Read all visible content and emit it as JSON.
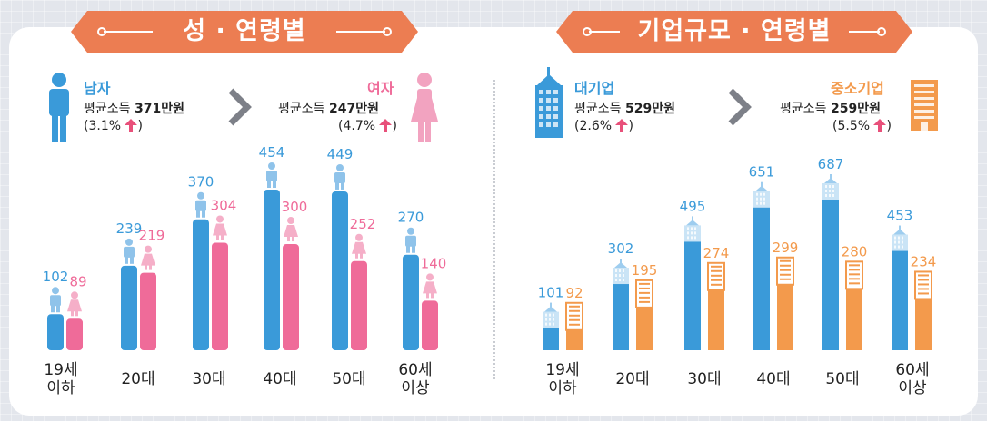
{
  "left": {
    "banner": "성 · 연령별",
    "male": {
      "name": "남자",
      "income_label": "평균소득",
      "income": "371만원",
      "change": "(3.1%",
      "color": "#3a9ad9"
    },
    "female": {
      "name": "여자",
      "income_label": "평균소득",
      "income": "247만원",
      "change": "(4.7%",
      "color": "#ef6b99"
    }
  },
  "right": {
    "banner": "기업규모 · 연령별",
    "large": {
      "name": "대기업",
      "income_label": "평균소득",
      "income": "529만원",
      "change": "(2.6%",
      "color": "#3a9ad9"
    },
    "sme": {
      "name": "중소기업",
      "income_label": "평균소득",
      "income": "259만원",
      "change": "(5.5%",
      "color": "#f39a4c"
    }
  },
  "colors": {
    "banner": "#ec7d52",
    "male": "#3a9ad9",
    "female": "#ef6b99",
    "large": "#3a9ad9",
    "sme": "#f39a4c",
    "up_arrow": "#e8507a"
  },
  "chart_data": [
    {
      "type": "bar",
      "categories": [
        "19세 이하",
        "20대",
        "30대",
        "40대",
        "50대",
        "60세 이상"
      ],
      "series": [
        {
          "name": "남자",
          "values": [
            102,
            239,
            370,
            454,
            449,
            270
          ]
        },
        {
          "name": "여자",
          "values": [
            89,
            219,
            304,
            300,
            252,
            140
          ]
        }
      ]
    },
    {
      "type": "bar",
      "categories": [
        "19세 이하",
        "20대",
        "30대",
        "40대",
        "50대",
        "60세 이상"
      ],
      "series": [
        {
          "name": "대기업",
          "values": [
            101,
            302,
            495,
            651,
            687,
            453
          ]
        },
        {
          "name": "중소기업",
          "values": [
            92,
            195,
            274,
            299,
            280,
            234
          ]
        }
      ]
    }
  ]
}
